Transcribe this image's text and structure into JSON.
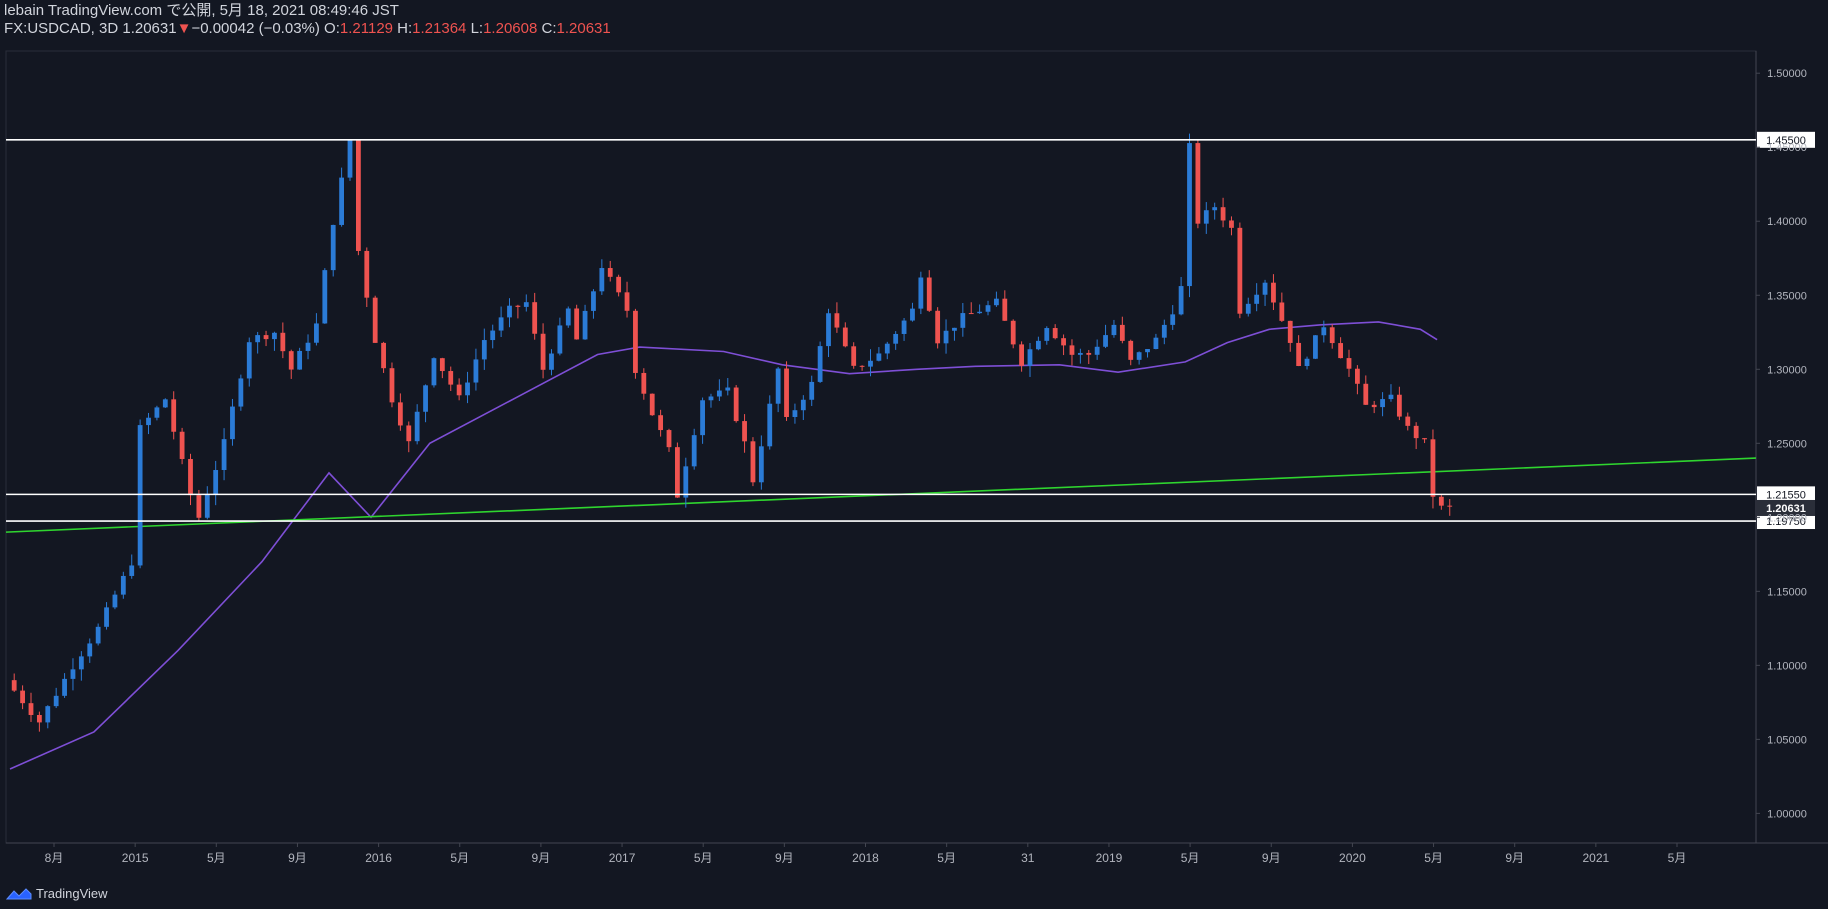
{
  "header": {
    "publisher": "lebain TradingView.com で公開, 5月 18, 2021 08:49:46 JST",
    "symbol": "FX:USDCAD, 3D 1.20631",
    "down_arrow": "▼",
    "change": "−0.00042 (−0.03%)",
    "o_label": "O:",
    "o_value": "1.21129",
    "h_label": "H:",
    "h_value": "1.21364",
    "l_label": "L:",
    "l_value": "1.20608",
    "c_label": "C:",
    "c_value": "1.20631"
  },
  "footer": {
    "brand": "TradingView"
  },
  "colors": {
    "background": "#131722",
    "up": "#2b7bd6",
    "down": "#ef5350",
    "ma": "#7e4fd6",
    "trendline": "#2fd52f",
    "level": "#ffffff",
    "axis_text": "#b2b5be"
  },
  "chart_data": {
    "type": "candlestick",
    "title": "FX:USDCAD, 3D",
    "ylim": [
      0.98,
      1.515
    ],
    "y_ticks": [
      "1.50000",
      "1.45000",
      "1.40000",
      "1.35000",
      "1.30000",
      "1.25000",
      "1.20000",
      "1.15000",
      "1.10000",
      "1.05000",
      "1.00000"
    ],
    "x_ticks": [
      "8月",
      "2015",
      "5月",
      "9月",
      "2016",
      "5月",
      "9月",
      "2017",
      "5月",
      "9月",
      "2018",
      "5月",
      "31",
      "2019",
      "5月",
      "9月",
      "2020",
      "5月",
      "9月",
      "2021",
      "5月"
    ],
    "horizontal_levels": [
      {
        "label": "1.45500",
        "value": 1.455
      },
      {
        "label": "1.21550",
        "value": 1.2155
      },
      {
        "label": "1.19750",
        "value": 1.1975
      }
    ],
    "last_price": {
      "label": "1.20631",
      "value": 1.20631
    },
    "trendline": {
      "start_value": 1.19,
      "end_value": 1.24
    },
    "price_path": [
      [
        0,
        1.09
      ],
      [
        4,
        1.062
      ],
      [
        8,
        1.1
      ],
      [
        11,
        1.125
      ],
      [
        15,
        1.17
      ],
      [
        16,
        1.26
      ],
      [
        19,
        1.28
      ],
      [
        22,
        1.215
      ],
      [
        23,
        1.2
      ],
      [
        26,
        1.25
      ],
      [
        29,
        1.32
      ],
      [
        32,
        1.325
      ],
      [
        34,
        1.3
      ],
      [
        37,
        1.33
      ],
      [
        39,
        1.4
      ],
      [
        41,
        1.455
      ],
      [
        42,
        1.38
      ],
      [
        44,
        1.32
      ],
      [
        46,
        1.28
      ],
      [
        48,
        1.25
      ],
      [
        51,
        1.31
      ],
      [
        54,
        1.28
      ],
      [
        57,
        1.32
      ],
      [
        60,
        1.34
      ],
      [
        62,
        1.345
      ],
      [
        64,
        1.3
      ],
      [
        67,
        1.34
      ],
      [
        68,
        1.32
      ],
      [
        71,
        1.37
      ],
      [
        74,
        1.34
      ],
      [
        75,
        1.3
      ],
      [
        77,
        1.27
      ],
      [
        79,
        1.245
      ],
      [
        80,
        1.215
      ],
      [
        83,
        1.28
      ],
      [
        86,
        1.285
      ],
      [
        88,
        1.25
      ],
      [
        89,
        1.225
      ],
      [
        92,
        1.3
      ],
      [
        93,
        1.265
      ],
      [
        96,
        1.29
      ],
      [
        98,
        1.34
      ],
      [
        101,
        1.3
      ],
      [
        104,
        1.31
      ],
      [
        108,
        1.34
      ],
      [
        109,
        1.365
      ],
      [
        111,
        1.32
      ],
      [
        114,
        1.335
      ],
      [
        118,
        1.345
      ],
      [
        121,
        1.305
      ],
      [
        124,
        1.33
      ],
      [
        127,
        1.31
      ],
      [
        129,
        1.31
      ],
      [
        132,
        1.33
      ],
      [
        134,
        1.305
      ],
      [
        137,
        1.32
      ],
      [
        139,
        1.34
      ],
      [
        140,
        1.355
      ],
      [
        141,
        1.45
      ],
      [
        142,
        1.4
      ],
      [
        144,
        1.41
      ],
      [
        146,
        1.395
      ],
      [
        147,
        1.34
      ],
      [
        150,
        1.36
      ],
      [
        153,
        1.32
      ],
      [
        154,
        1.3
      ],
      [
        157,
        1.33
      ],
      [
        159,
        1.31
      ],
      [
        160,
        1.3
      ],
      [
        162,
        1.275
      ],
      [
        165,
        1.28
      ],
      [
        167,
        1.26
      ],
      [
        169,
        1.25
      ],
      [
        170,
        1.215
      ],
      [
        171,
        1.20631
      ]
    ],
    "moving_average_path": [
      [
        0,
        1.03
      ],
      [
        10,
        1.055
      ],
      [
        20,
        1.11
      ],
      [
        30,
        1.17
      ],
      [
        38,
        1.23
      ],
      [
        43,
        1.2
      ],
      [
        50,
        1.25
      ],
      [
        60,
        1.28
      ],
      [
        70,
        1.31
      ],
      [
        75,
        1.315
      ],
      [
        85,
        1.312
      ],
      [
        92,
        1.303
      ],
      [
        100,
        1.297
      ],
      [
        108,
        1.3
      ],
      [
        115,
        1.302
      ],
      [
        125,
        1.303
      ],
      [
        132,
        1.298
      ],
      [
        140,
        1.305
      ],
      [
        145,
        1.318
      ],
      [
        150,
        1.327
      ],
      [
        156,
        1.33
      ],
      [
        163,
        1.332
      ],
      [
        168,
        1.327
      ],
      [
        170,
        1.32
      ]
    ],
    "candles": []
  }
}
